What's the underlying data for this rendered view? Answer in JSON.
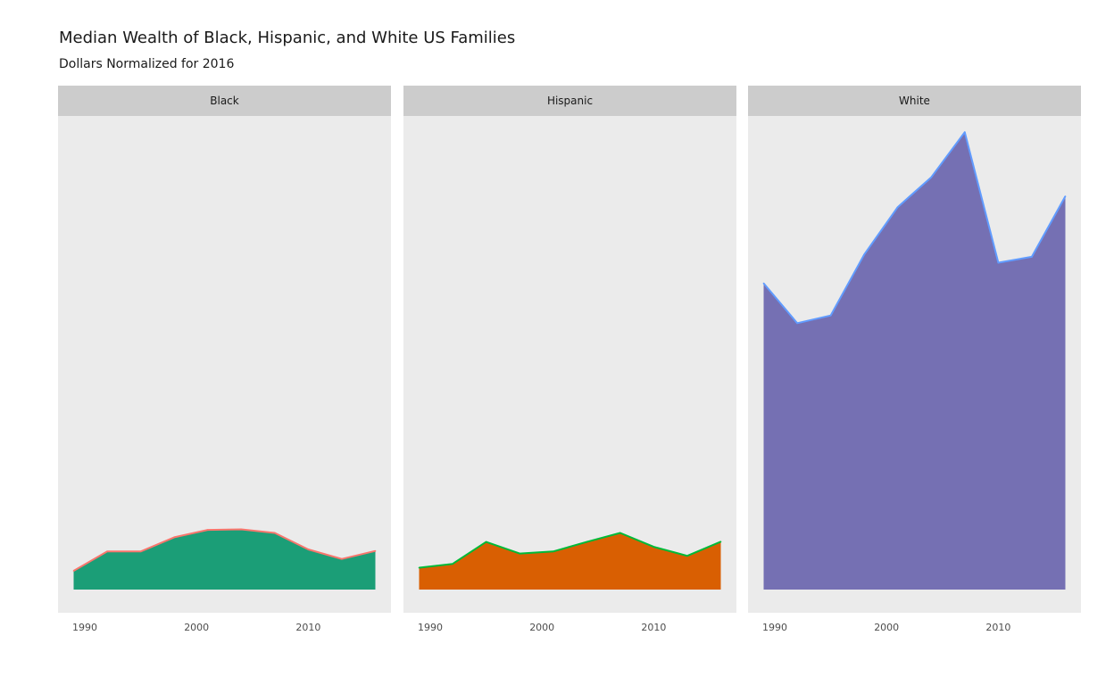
{
  "chart_data": {
    "type": "area",
    "title": "Median Wealth of Black, Hispanic, and White US Families",
    "subtitle": "Dollars Normalized for 2016",
    "xlabel": "",
    "ylabel": "",
    "x": [
      1989,
      1992,
      1995,
      1998,
      2001,
      2004,
      2007,
      2010,
      2013,
      2016
    ],
    "x_ticks": [
      "1990",
      "2000",
      "2010"
    ],
    "x_tick_values": [
      1990,
      2000,
      2010
    ],
    "xlim": [
      1987.6,
      2017.4
    ],
    "ylim": [
      -9000,
      184000
    ],
    "grid": false,
    "legend": "none",
    "series": [
      {
        "name": "Black",
        "values": [
          7300,
          14800,
          14800,
          20300,
          23200,
          23400,
          22000,
          15600,
          11900,
          15000
        ],
        "fill": "#1b9e77",
        "line": "#f8766d"
      },
      {
        "name": "Hispanic",
        "values": [
          8500,
          10000,
          18500,
          14000,
          14800,
          18500,
          22000,
          16600,
          13100,
          18600
        ],
        "fill": "#d95f02",
        "line": "#00ba38"
      },
      {
        "name": "White",
        "values": [
          119000,
          103500,
          106500,
          130200,
          148600,
          160200,
          177700,
          127000,
          129300,
          152800
        ],
        "fill": "#7570b3",
        "line": "#619cff"
      }
    ]
  }
}
